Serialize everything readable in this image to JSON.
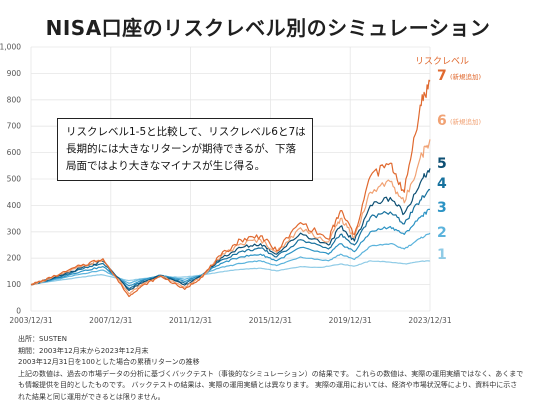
{
  "page": {
    "title": "NISA口座のリスクレベル別のシミュレーション",
    "note_lines": [
      "リスクレベル1-5と比較して、リスクレベル6と7は",
      "長期的には大きなリターンが期待できるが、下落",
      "局面ではより大きなマイナスが生じ得る。"
    ],
    "footnotes": {
      "source": "出所：SUSTEN",
      "period": "期間：2003年12月末から2023年12月末",
      "basis": "2003年12月31日を100とした場合の累積リターンの推移",
      "disclaimer": "上記の数値は、過去の市場データの分析に基づくバックテスト（事後的なシミュレーション）の結果です。 これらの数値は、実際の運用実績ではなく、あくまでも情報提供を目的としたものです。 バックテストの結果は、実際の運用実績とは異なります。 実際の運用においては、経済や市場状況等により、資料中に示された結果と同じ運用ができるとは限りません。"
    }
  },
  "chart_data": {
    "type": "line",
    "x_start": 2003.99,
    "x_end": 2023.99,
    "xlim": [
      "2003/12/31",
      "2023/12/31"
    ],
    "ylim": [
      0,
      1000
    ],
    "y_ticks": [
      "0",
      "100",
      "200",
      "300",
      "400",
      "500",
      "600",
      "700",
      "800",
      "900",
      "1,000"
    ],
    "x_ticks": [
      "2003/12/31",
      "2007/12/31",
      "2011/12/31",
      "2015/12/31",
      "2019/12/31",
      "2023/12/31"
    ],
    "legend_title": "リスクレベル",
    "grid": true,
    "series": [
      {
        "name": "1",
        "note": "",
        "color": "#8fcbe6",
        "points": [
          [
            2003.99,
            100
          ],
          [
            2005,
            112
          ],
          [
            2006.5,
            128
          ],
          [
            2007.5,
            138
          ],
          [
            2008.9,
            115
          ],
          [
            2009.5,
            122
          ],
          [
            2010.5,
            130
          ],
          [
            2011.5,
            128
          ],
          [
            2012.5,
            135
          ],
          [
            2013.5,
            148
          ],
          [
            2014.5,
            158
          ],
          [
            2015.5,
            162
          ],
          [
            2016.3,
            152
          ],
          [
            2017.5,
            168
          ],
          [
            2018.5,
            165
          ],
          [
            2019.5,
            178
          ],
          [
            2020.2,
            170
          ],
          [
            2021,
            190
          ],
          [
            2022,
            185
          ],
          [
            2022.8,
            178
          ],
          [
            2023.5,
            188
          ],
          [
            2023.99,
            190
          ]
        ]
      },
      {
        "name": "2",
        "note": "",
        "color": "#5bb3dc",
        "points": [
          [
            2003.99,
            100
          ],
          [
            2005,
            115
          ],
          [
            2006.5,
            140
          ],
          [
            2007.6,
            155
          ],
          [
            2008.9,
            105
          ],
          [
            2009.5,
            120
          ],
          [
            2010.5,
            132
          ],
          [
            2011.7,
            120
          ],
          [
            2012.5,
            135
          ],
          [
            2013.5,
            165
          ],
          [
            2014.5,
            180
          ],
          [
            2015.5,
            190
          ],
          [
            2016.3,
            172
          ],
          [
            2017.5,
            205
          ],
          [
            2018.9,
            190
          ],
          [
            2019.5,
            215
          ],
          [
            2020.2,
            195
          ],
          [
            2021,
            245
          ],
          [
            2022,
            255
          ],
          [
            2022.7,
            235
          ],
          [
            2023.5,
            275
          ],
          [
            2023.99,
            295
          ]
        ]
      },
      {
        "name": "3",
        "note": "",
        "color": "#2c93c4",
        "points": [
          [
            2003.99,
            100
          ],
          [
            2005,
            118
          ],
          [
            2006.5,
            150
          ],
          [
            2007.6,
            168
          ],
          [
            2008.9,
            95
          ],
          [
            2009.5,
            115
          ],
          [
            2010.5,
            135
          ],
          [
            2011.7,
            112
          ],
          [
            2012.5,
            135
          ],
          [
            2013.5,
            180
          ],
          [
            2014.5,
            205
          ],
          [
            2015.5,
            215
          ],
          [
            2016.3,
            190
          ],
          [
            2017.5,
            240
          ],
          [
            2018.9,
            215
          ],
          [
            2019.5,
            255
          ],
          [
            2020.2,
            225
          ],
          [
            2021,
            300
          ],
          [
            2022,
            320
          ],
          [
            2022.7,
            290
          ],
          [
            2023.5,
            355
          ],
          [
            2023.99,
            385
          ]
        ]
      },
      {
        "name": "4",
        "note": "",
        "color": "#17719e",
        "points": [
          [
            2003.99,
            100
          ],
          [
            2005,
            120
          ],
          [
            2006.5,
            158
          ],
          [
            2007.6,
            180
          ],
          [
            2008.9,
            85
          ],
          [
            2009.5,
            110
          ],
          [
            2010.5,
            135
          ],
          [
            2011.7,
            105
          ],
          [
            2012.5,
            133
          ],
          [
            2013.5,
            192
          ],
          [
            2014.5,
            225
          ],
          [
            2015.5,
            238
          ],
          [
            2016.3,
            205
          ],
          [
            2017.5,
            270
          ],
          [
            2018.9,
            235
          ],
          [
            2019.5,
            290
          ],
          [
            2020.2,
            250
          ],
          [
            2021,
            355
          ],
          [
            2022,
            375
          ],
          [
            2022.7,
            330
          ],
          [
            2023.5,
            420
          ],
          [
            2023.99,
            460
          ]
        ]
      },
      {
        "name": "5",
        "note": "",
        "color": "#0d4f73",
        "points": [
          [
            2003.99,
            100
          ],
          [
            2005,
            122
          ],
          [
            2006.5,
            163
          ],
          [
            2007.6,
            188
          ],
          [
            2008.9,
            78
          ],
          [
            2009.5,
            105
          ],
          [
            2010.5,
            135
          ],
          [
            2011.7,
            98
          ],
          [
            2012.5,
            130
          ],
          [
            2013.5,
            200
          ],
          [
            2014.5,
            240
          ],
          [
            2015.5,
            255
          ],
          [
            2016.3,
            215
          ],
          [
            2017.5,
            295
          ],
          [
            2018.9,
            250
          ],
          [
            2019.5,
            320
          ],
          [
            2020.2,
            265
          ],
          [
            2021,
            400
          ],
          [
            2022,
            430
          ],
          [
            2022.7,
            370
          ],
          [
            2023.5,
            485
          ],
          [
            2023.99,
            540
          ]
        ]
      },
      {
        "name": "6",
        "note": "(新規追加)",
        "color": "#f1a274",
        "points": [
          [
            2003.99,
            100
          ],
          [
            2005,
            124
          ],
          [
            2006.5,
            168
          ],
          [
            2007.6,
            193
          ],
          [
            2008.9,
            65
          ],
          [
            2009.5,
            98
          ],
          [
            2010.5,
            133
          ],
          [
            2011.7,
            90
          ],
          [
            2012.5,
            128
          ],
          [
            2013.5,
            205
          ],
          [
            2014.5,
            255
          ],
          [
            2015.5,
            270
          ],
          [
            2016.3,
            222
          ],
          [
            2017.5,
            315
          ],
          [
            2018.9,
            262
          ],
          [
            2019.5,
            350
          ],
          [
            2020.2,
            280
          ],
          [
            2021,
            450
          ],
          [
            2022,
            490
          ],
          [
            2022.7,
            410
          ],
          [
            2023.5,
            580
          ],
          [
            2023.99,
            650
          ]
        ]
      },
      {
        "name": "7",
        "note": "(新規追加)",
        "color": "#e0692f",
        "points": [
          [
            2003.99,
            100
          ],
          [
            2005,
            126
          ],
          [
            2006.5,
            172
          ],
          [
            2007.6,
            198
          ],
          [
            2008.9,
            55
          ],
          [
            2009.5,
            92
          ],
          [
            2010.5,
            132
          ],
          [
            2011.7,
            82
          ],
          [
            2012.5,
            126
          ],
          [
            2013.5,
            210
          ],
          [
            2014.5,
            270
          ],
          [
            2015.5,
            285
          ],
          [
            2016.3,
            228
          ],
          [
            2017.5,
            335
          ],
          [
            2018.9,
            272
          ],
          [
            2019.5,
            380
          ],
          [
            2020.2,
            290
          ],
          [
            2021,
            510
          ],
          [
            2022,
            560
          ],
          [
            2022.7,
            450
          ],
          [
            2023.5,
            780
          ],
          [
            2023.99,
            870
          ]
        ]
      }
    ]
  }
}
